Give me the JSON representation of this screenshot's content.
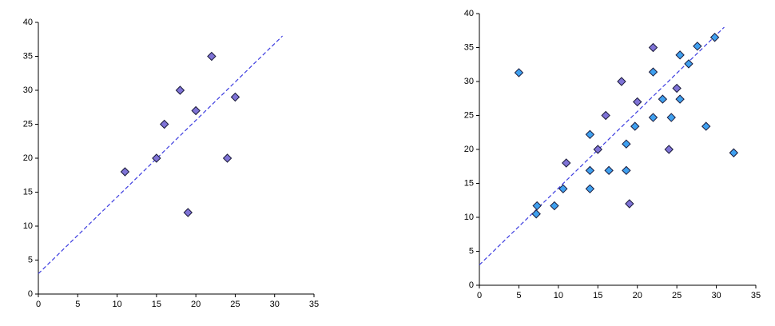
{
  "chart_data": [
    {
      "type": "scatter",
      "xlim": [
        0,
        35
      ],
      "ylim": [
        0,
        40
      ],
      "xticks": [
        0,
        5,
        10,
        15,
        20,
        25,
        30,
        35
      ],
      "yticks": [
        0,
        5,
        10,
        15,
        20,
        25,
        30,
        35,
        40
      ],
      "series": [
        {
          "color": "#7f73d6",
          "marker": "diamond",
          "x": [
            11,
            15,
            16,
            18,
            19,
            20,
            22,
            24,
            25
          ],
          "values": [
            18,
            20,
            25,
            30,
            12,
            27,
            35,
            20,
            29
          ]
        },
        {
          "color": "#3d3de0",
          "marker": "dashed-line",
          "x": [
            0,
            31
          ],
          "values": [
            3,
            38
          ]
        }
      ]
    },
    {
      "type": "scatter",
      "xlim": [
        0,
        35
      ],
      "ylim": [
        0,
        40
      ],
      "xticks": [
        0,
        5,
        10,
        15,
        20,
        25,
        30,
        35
      ],
      "yticks": [
        0,
        5,
        10,
        15,
        20,
        25,
        30,
        35,
        40
      ],
      "series": [
        {
          "color": "#7f73d6",
          "marker": "diamond",
          "x": [
            11,
            15,
            16,
            18,
            19,
            20,
            22,
            24,
            25
          ],
          "values": [
            18,
            20,
            25,
            30,
            12,
            27,
            35,
            20,
            29
          ]
        },
        {
          "color": "#3fa0ef",
          "marker": "diamond",
          "x": [
            5,
            7.3,
            7.2,
            9.5,
            10.6,
            14,
            14,
            14,
            16.4,
            18.6,
            18.6,
            19.7,
            22,
            22,
            23.2,
            24.3,
            25.4,
            25.4,
            26.5,
            27.6,
            28.7,
            29.8,
            32.2
          ],
          "values": [
            31.3,
            11.7,
            10.5,
            11.7,
            14.2,
            22.2,
            16.9,
            14.2,
            16.9,
            20.8,
            16.9,
            23.4,
            31.4,
            24.7,
            27.4,
            24.7,
            33.9,
            27.4,
            32.6,
            35.2,
            23.4,
            36.5,
            19.5
          ]
        },
        {
          "color": "#3d3de0",
          "marker": "dashed-line",
          "x": [
            0,
            31
          ],
          "values": [
            3,
            38
          ]
        }
      ]
    }
  ]
}
